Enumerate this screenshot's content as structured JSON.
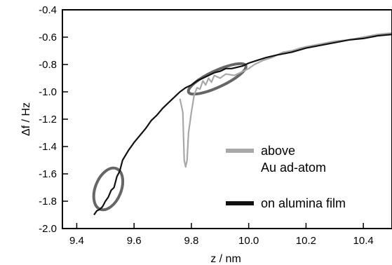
{
  "chart_data": {
    "type": "line",
    "title": "",
    "xlabel": "z / nm",
    "ylabel": "Δf / Hz",
    "xlim": [
      9.35,
      10.5
    ],
    "ylim": [
      -2.0,
      -0.4
    ],
    "grid": false,
    "legend_position": "bottom-right",
    "x_ticks": [
      9.4,
      9.6,
      9.8,
      10.0,
      10.2,
      10.4
    ],
    "x_tick_labels": [
      "9.4",
      "9.6",
      "9.8",
      "10.0",
      "10.2",
      "10.4"
    ],
    "y_ticks": [
      -0.4,
      -0.6,
      -0.8,
      -1.0,
      -1.2,
      -1.4,
      -1.6,
      -1.8,
      -2.0
    ],
    "y_tick_labels": [
      "-0.4",
      "-0.6",
      "-0.8",
      "-1.0",
      "-1.2",
      "-1.4",
      "-1.6",
      "-1.8",
      "-2.0"
    ],
    "series": [
      {
        "name": "above Au ad-atom",
        "legend_lines": [
          "above",
          "Au ad-atom"
        ],
        "color": "#a8a8a8",
        "x": [
          9.76,
          9.77,
          9.775,
          9.78,
          9.785,
          9.79,
          9.8,
          9.81,
          9.82,
          9.83,
          9.84,
          9.85,
          9.86,
          9.87,
          9.88,
          9.9,
          9.92,
          9.95,
          9.98,
          10.0,
          10.02,
          10.05,
          10.08,
          10.1,
          10.12,
          10.15,
          10.18,
          10.2,
          10.25,
          10.3,
          10.35,
          10.4,
          10.45,
          10.5
        ],
        "y": [
          -1.05,
          -1.15,
          -1.5,
          -1.55,
          -1.5,
          -1.3,
          -1.15,
          -1.02,
          -0.97,
          -0.98,
          -0.92,
          -0.95,
          -0.9,
          -0.93,
          -0.88,
          -0.9,
          -0.87,
          -0.88,
          -0.85,
          -0.83,
          -0.8,
          -0.77,
          -0.75,
          -0.73,
          -0.71,
          -0.7,
          -0.68,
          -0.67,
          -0.65,
          -0.63,
          -0.62,
          -0.6,
          -0.58,
          -0.57
        ]
      },
      {
        "name": "on alumina film",
        "legend_lines": [
          "on alumina film"
        ],
        "color": "#111111",
        "x": [
          9.46,
          9.47,
          9.48,
          9.49,
          9.5,
          9.51,
          9.52,
          9.53,
          9.54,
          9.55,
          9.56,
          9.58,
          9.6,
          9.62,
          9.64,
          9.66,
          9.68,
          9.7,
          9.72,
          9.74,
          9.76,
          9.78,
          9.8,
          9.82,
          9.84,
          9.86,
          9.88,
          9.9,
          9.92,
          9.94,
          9.96,
          9.98,
          10.0,
          10.03,
          10.06,
          10.1,
          10.15,
          10.2,
          10.25,
          10.3,
          10.35,
          10.4,
          10.45,
          10.5
        ],
        "y": [
          -1.9,
          -1.87,
          -1.86,
          -1.84,
          -1.8,
          -1.77,
          -1.72,
          -1.7,
          -1.62,
          -1.58,
          -1.5,
          -1.43,
          -1.37,
          -1.32,
          -1.27,
          -1.21,
          -1.17,
          -1.12,
          -1.08,
          -1.04,
          -1.0,
          -0.97,
          -0.95,
          -0.92,
          -0.9,
          -0.88,
          -0.86,
          -0.85,
          -0.83,
          -0.83,
          -0.82,
          -0.81,
          -0.79,
          -0.77,
          -0.75,
          -0.73,
          -0.71,
          -0.68,
          -0.66,
          -0.64,
          -0.62,
          -0.61,
          -0.59,
          -0.58
        ]
      }
    ],
    "annotations": [
      {
        "type": "ellipse",
        "cx": 9.51,
        "cy": -1.71,
        "rx_data": 0.045,
        "ry_data": 0.16,
        "rotation_deg": 22
      },
      {
        "type": "ellipse",
        "cx": 9.89,
        "cy": -0.905,
        "rx_data": 0.11,
        "ry_data": 0.06,
        "rotation_deg": -25
      }
    ]
  }
}
